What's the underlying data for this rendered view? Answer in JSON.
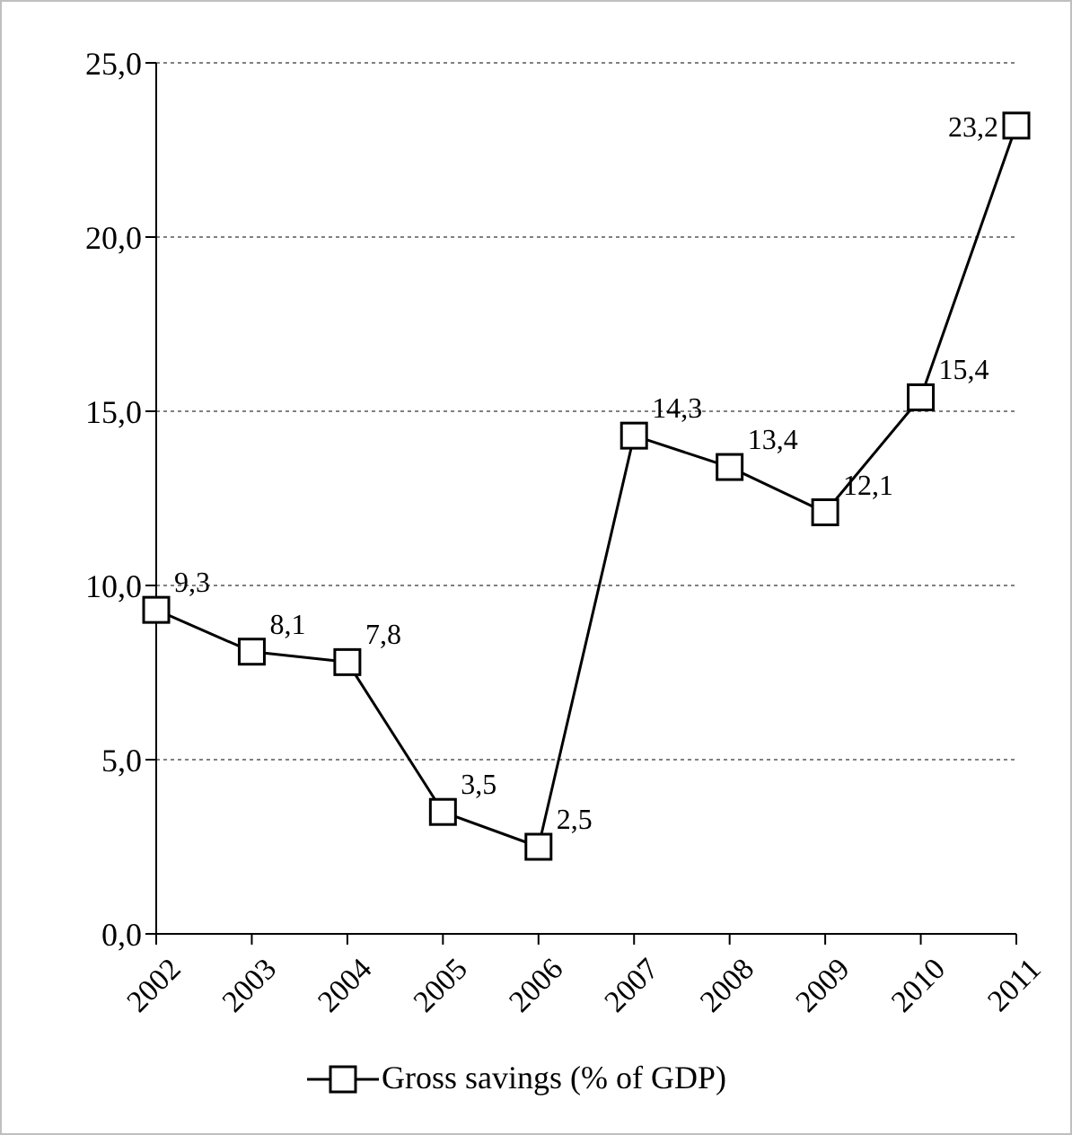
{
  "chart_data": {
    "type": "line",
    "categories": [
      "2002",
      "2003",
      "2004",
      "2005",
      "2006",
      "2007",
      "2008",
      "2009",
      "2010",
      "2011"
    ],
    "series": [
      {
        "name": "Gross savings (% of GDP)",
        "color": "#000000",
        "values": [
          9.3,
          8.1,
          7.8,
          3.5,
          2.5,
          14.3,
          13.4,
          12.1,
          15.4,
          23.2
        ],
        "value_labels": [
          "9,3",
          "8,1",
          "7,8",
          "3,5",
          "2,5",
          "14,3",
          "13,4",
          "12,1",
          "15,4",
          "23,2"
        ]
      }
    ],
    "ylim": [
      0,
      25
    ],
    "yticks": [
      {
        "value": 0,
        "label": "0,0"
      },
      {
        "value": 5,
        "label": "5,0"
      },
      {
        "value": 10,
        "label": "10,0"
      },
      {
        "value": 15,
        "label": "15,0"
      },
      {
        "value": 20,
        "label": "20,0"
      },
      {
        "value": 25,
        "label": "25,0"
      }
    ],
    "grid": "y",
    "legend": "bottom",
    "marker": "square",
    "line_style": "solid"
  }
}
